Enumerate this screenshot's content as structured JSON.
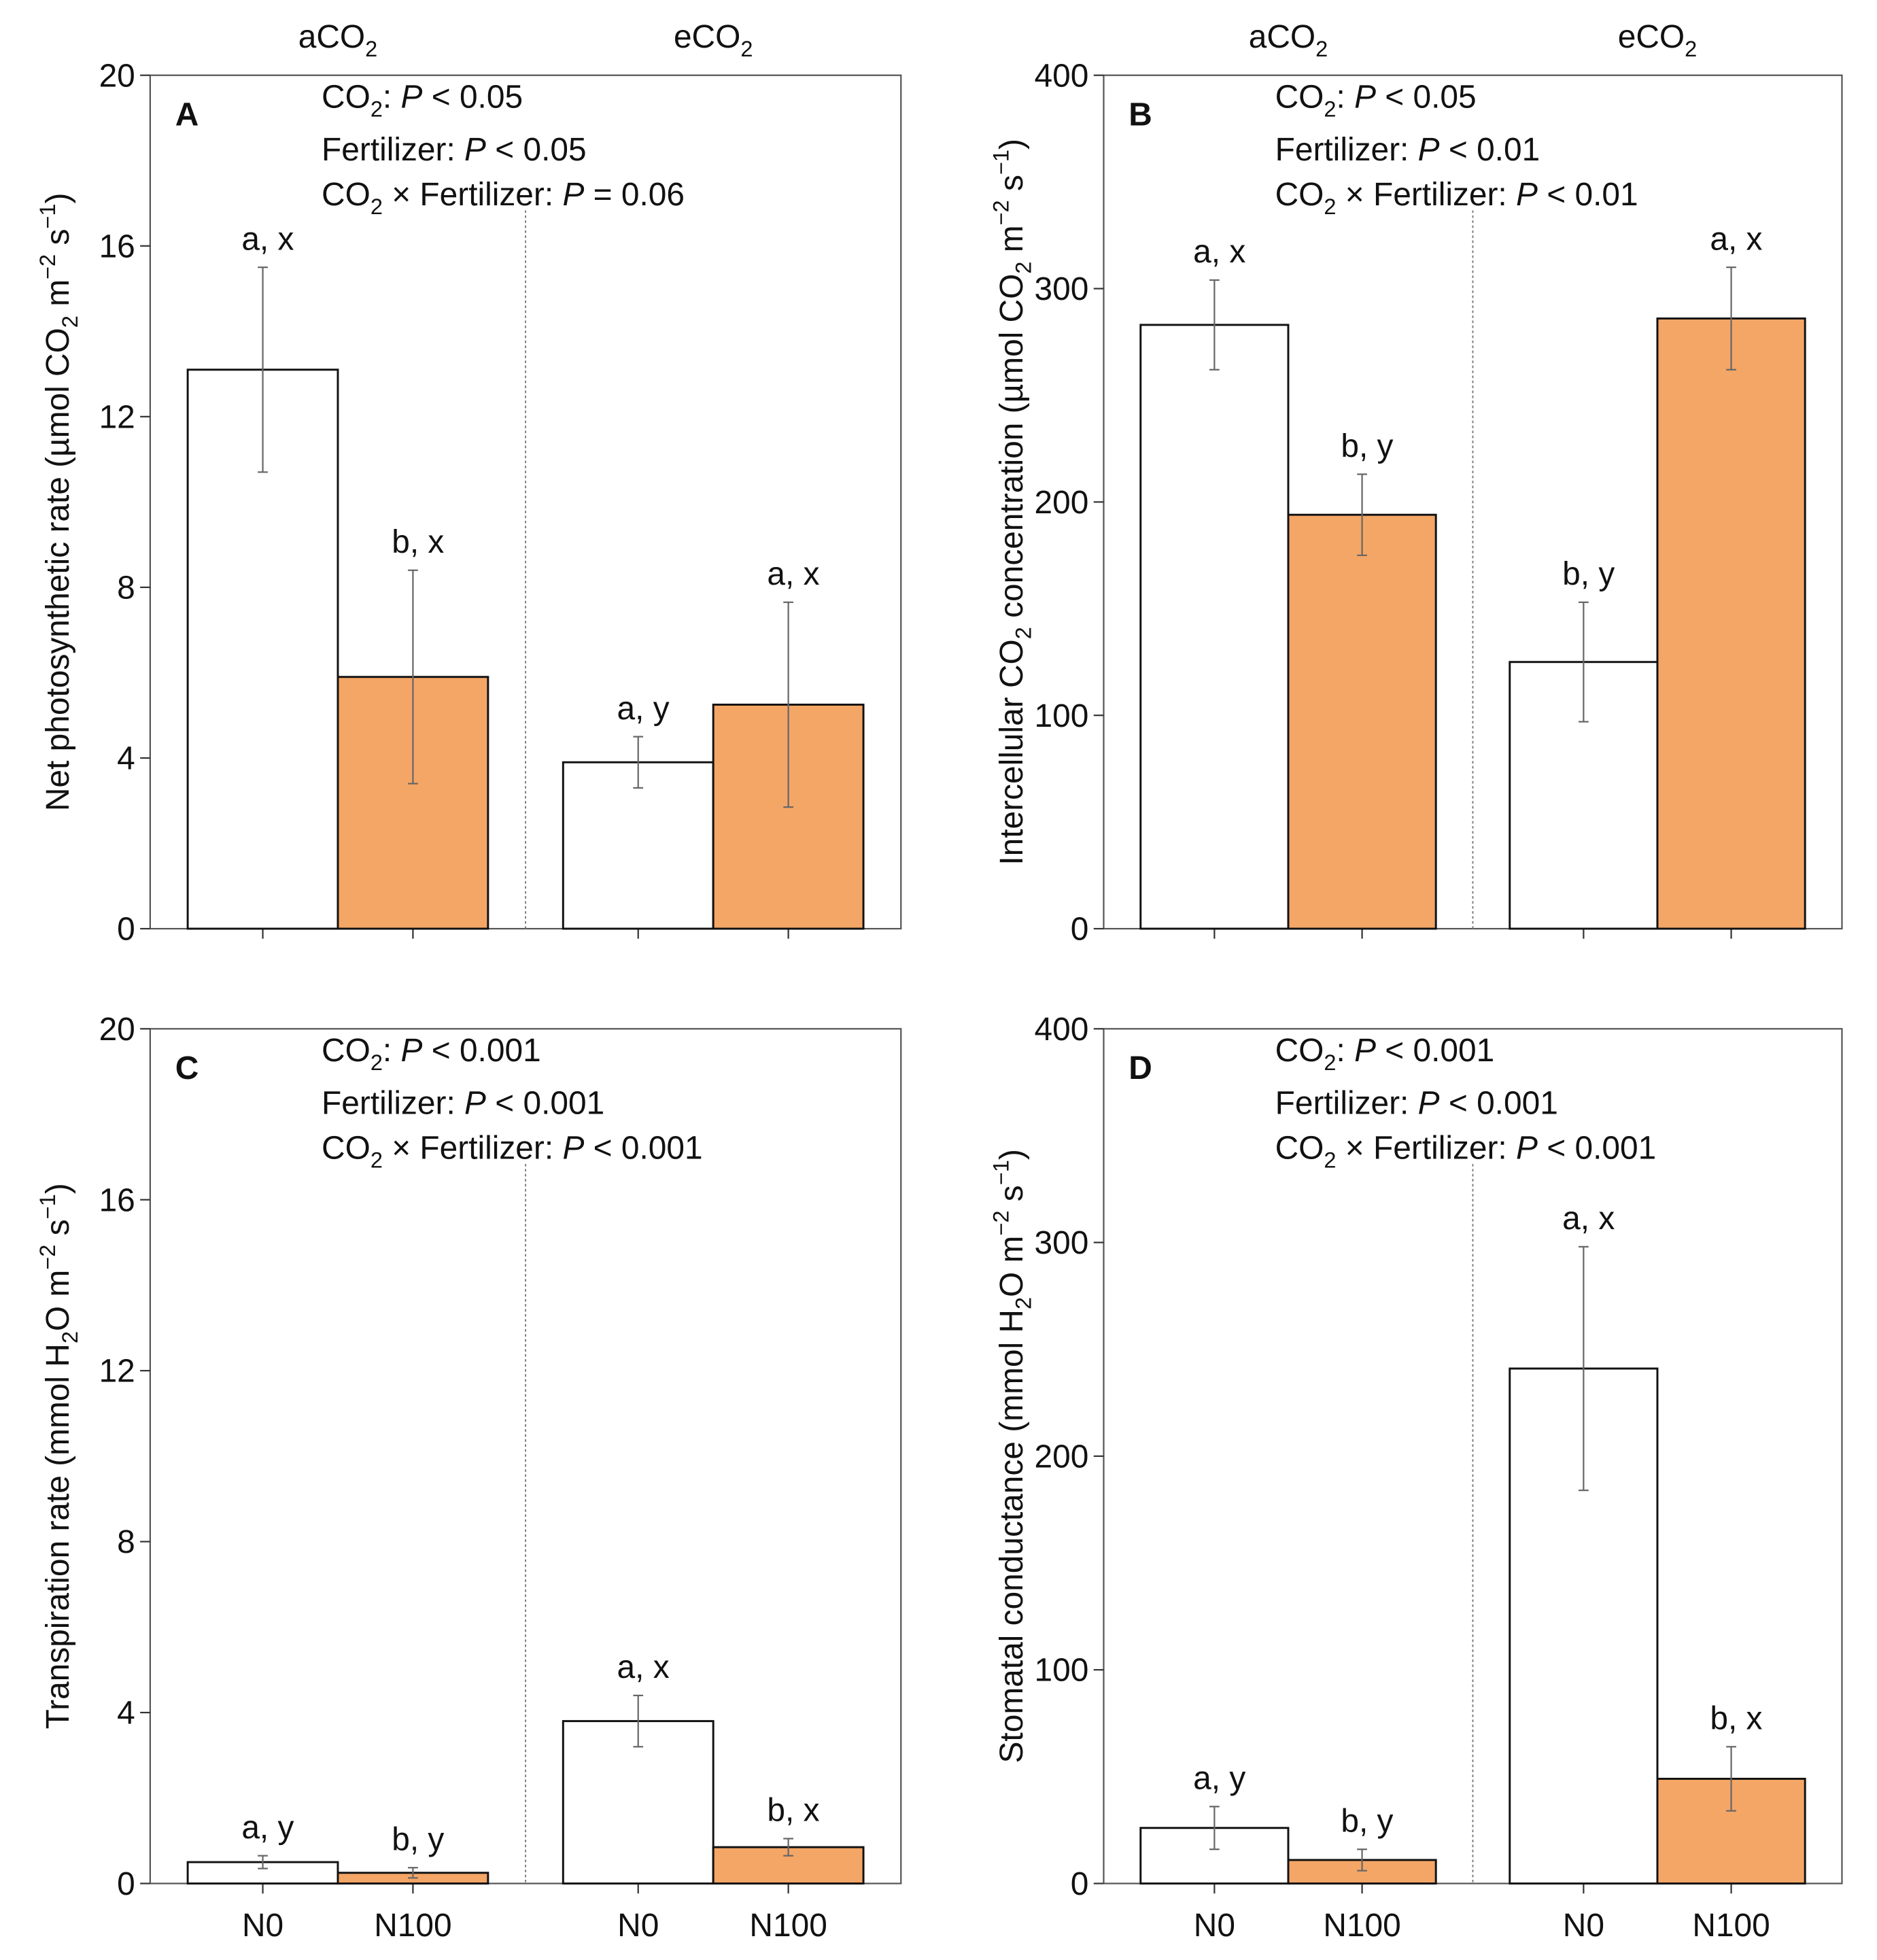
{
  "chart_data": [
    {
      "type": "bar",
      "panel_label": "A",
      "y_label": [
        {
          "t": "Net photosynthetic rate (µmol CO"
        },
        {
          "t": "2",
          "sub": true
        },
        {
          "t": " m"
        },
        {
          "t": "−2",
          "sup": true
        },
        {
          "t": " s"
        },
        {
          "t": "−1",
          "sup": true
        },
        {
          "t": ")"
        }
      ],
      "groups": [
        [
          {
            "t": "aCO"
          },
          {
            "t": "2",
            "sub": true
          }
        ],
        [
          {
            "t": "eCO"
          },
          {
            "t": "2",
            "sub": true
          }
        ]
      ],
      "stats": [
        [
          {
            "t": "CO"
          },
          {
            "t": "2",
            "sub": true
          },
          {
            "t": ": "
          },
          {
            "t": "P",
            "i": true
          },
          {
            "t": " < 0.05"
          }
        ],
        [
          {
            "t": "Fertilizer: "
          },
          {
            "t": "P",
            "i": true
          },
          {
            "t": " < 0.05"
          }
        ],
        [
          {
            "t": "CO"
          },
          {
            "t": "2",
            "sub": true
          },
          {
            "t": " × Fertilizer: "
          },
          {
            "t": "P",
            "i": true
          },
          {
            "t": " = 0.06"
          }
        ]
      ],
      "values": [
        13.1,
        5.9,
        3.9,
        5.25
      ],
      "errors": [
        2.4,
        2.5,
        0.6,
        2.4
      ],
      "annotations": [
        "a, x",
        "b, x",
        "a, y",
        "a, x"
      ],
      "colors": [
        "#ffffff",
        "#f4a666",
        "#ffffff",
        "#f4a666"
      ],
      "ylim": [
        0,
        20
      ],
      "yticks": [
        0,
        4,
        8,
        12,
        16,
        20
      ]
    },
    {
      "type": "bar",
      "panel_label": "B",
      "y_label": [
        {
          "t": "Intercellular CO"
        },
        {
          "t": "2",
          "sub": true
        },
        {
          "t": " concentration (µmol CO"
        },
        {
          "t": "2",
          "sub": true
        },
        {
          "t": " m"
        },
        {
          "t": "−2",
          "sup": true
        },
        {
          "t": " s"
        },
        {
          "t": "−1",
          "sup": true
        },
        {
          "t": ")"
        }
      ],
      "groups": [
        [
          {
            "t": "aCO"
          },
          {
            "t": "2",
            "sub": true
          }
        ],
        [
          {
            "t": "eCO"
          },
          {
            "t": "2",
            "sub": true
          }
        ]
      ],
      "stats": [
        [
          {
            "t": "CO"
          },
          {
            "t": "2",
            "sub": true
          },
          {
            "t": ": "
          },
          {
            "t": "P",
            "i": true
          },
          {
            "t": " < 0.05"
          }
        ],
        [
          {
            "t": "Fertilizer: "
          },
          {
            "t": "P",
            "i": true
          },
          {
            "t": " < 0.01"
          }
        ],
        [
          {
            "t": "CO"
          },
          {
            "t": "2",
            "sub": true
          },
          {
            "t": " × Fertilizer: "
          },
          {
            "t": "P",
            "i": true
          },
          {
            "t": " < 0.01"
          }
        ]
      ],
      "values": [
        283,
        194,
        125,
        286
      ],
      "errors": [
        21,
        19,
        28,
        24
      ],
      "annotations": [
        "a, x",
        "b, y",
        "b, y",
        "a, x"
      ],
      "colors": [
        "#ffffff",
        "#f4a666",
        "#ffffff",
        "#f4a666"
      ],
      "ylim": [
        0,
        400
      ],
      "yticks": [
        0,
        100,
        200,
        300,
        400
      ]
    },
    {
      "type": "bar",
      "panel_label": "C",
      "y_label": [
        {
          "t": "Transpiration rate (mmol H"
        },
        {
          "t": "2",
          "sub": true
        },
        {
          "t": "O m"
        },
        {
          "t": "−2",
          "sup": true
        },
        {
          "t": " s"
        },
        {
          "t": "−1",
          "sup": true
        },
        {
          "t": ")"
        }
      ],
      "stats": [
        [
          {
            "t": "CO"
          },
          {
            "t": "2",
            "sub": true
          },
          {
            "t": ": "
          },
          {
            "t": "P",
            "i": true
          },
          {
            "t": " < 0.001"
          }
        ],
        [
          {
            "t": "Fertilizer: "
          },
          {
            "t": "P",
            "i": true
          },
          {
            "t": " < 0.001"
          }
        ],
        [
          {
            "t": "CO"
          },
          {
            "t": "2",
            "sub": true
          },
          {
            "t": " × Fertilizer: "
          },
          {
            "t": "P",
            "i": true
          },
          {
            "t": " < 0.001"
          }
        ]
      ],
      "categories": [
        "N0",
        "N100",
        "N0",
        "N100"
      ],
      "values": [
        0.5,
        0.25,
        3.8,
        0.85
      ],
      "errors": [
        0.15,
        0.12,
        0.6,
        0.2
      ],
      "annotations": [
        "a, y",
        "b, y",
        "a, x",
        "b, x"
      ],
      "colors": [
        "#ffffff",
        "#f4a666",
        "#ffffff",
        "#f4a666"
      ],
      "ylim": [
        0,
        20
      ],
      "yticks": [
        0,
        4,
        8,
        12,
        16,
        20
      ]
    },
    {
      "type": "bar",
      "panel_label": "D",
      "y_label": [
        {
          "t": "Stomatal conductance (mmol H"
        },
        {
          "t": "2",
          "sub": true
        },
        {
          "t": "O m"
        },
        {
          "t": "−2",
          "sup": true
        },
        {
          "t": " s"
        },
        {
          "t": "−1",
          "sup": true
        },
        {
          "t": ")"
        }
      ],
      "stats": [
        [
          {
            "t": "CO"
          },
          {
            "t": "2",
            "sub": true
          },
          {
            "t": ": "
          },
          {
            "t": "P",
            "i": true
          },
          {
            "t": " < 0.001"
          }
        ],
        [
          {
            "t": "Fertilizer: "
          },
          {
            "t": "P",
            "i": true
          },
          {
            "t": " < 0.001"
          }
        ],
        [
          {
            "t": "CO"
          },
          {
            "t": "2",
            "sub": true
          },
          {
            "t": " × Fertilizer: "
          },
          {
            "t": "P",
            "i": true
          },
          {
            "t": " < 0.001"
          }
        ]
      ],
      "categories": [
        "N0",
        "N100",
        "N0",
        "N100"
      ],
      "values": [
        26,
        11,
        241,
        49
      ],
      "errors": [
        10,
        5,
        57,
        15
      ],
      "annotations": [
        "a, y",
        "b, y",
        "a, x",
        "b, x"
      ],
      "colors": [
        "#ffffff",
        "#f4a666",
        "#ffffff",
        "#f4a666"
      ],
      "ylim": [
        0,
        400
      ],
      "yticks": [
        0,
        100,
        200,
        300,
        400
      ]
    }
  ]
}
